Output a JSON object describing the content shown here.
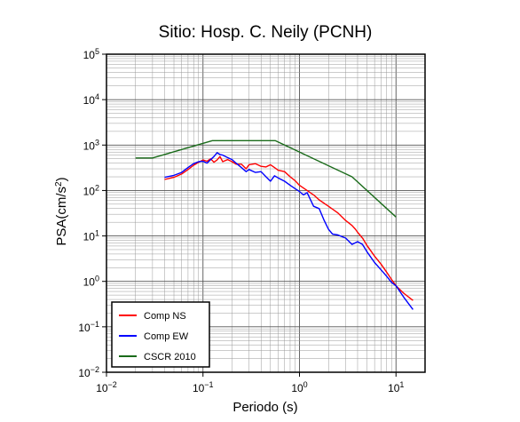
{
  "chart_data": {
    "type": "line",
    "title": "Sitio: Hosp. C. Neily (PCNH)",
    "xlabel": "Periodo (s)",
    "ylabel": "PSA(cm/s",
    "ylabel_sup": "2",
    "ylabel_close": ")",
    "x_scale": "log",
    "y_scale": "log",
    "xlim": [
      0.01,
      20
    ],
    "ylim": [
      0.01,
      100000
    ],
    "grid": true,
    "legend_position": "bottom-left",
    "x_tick_labels": [
      {
        "value": 0.01,
        "base": "10",
        "exp": "−2"
      },
      {
        "value": 0.1,
        "base": "10",
        "exp": "−1"
      },
      {
        "value": 1,
        "base": "10",
        "exp": "0"
      },
      {
        "value": 10,
        "base": "10",
        "exp": "1"
      }
    ],
    "y_tick_labels": [
      {
        "value": 0.01,
        "base": "10",
        "exp": "−2"
      },
      {
        "value": 0.1,
        "base": "10",
        "exp": "−1"
      },
      {
        "value": 1,
        "base": "10",
        "exp": "0"
      },
      {
        "value": 10,
        "base": "10",
        "exp": "1"
      },
      {
        "value": 100,
        "base": "10",
        "exp": "2"
      },
      {
        "value": 1000,
        "base": "10",
        "exp": "3"
      },
      {
        "value": 10000,
        "base": "10",
        "exp": "4"
      },
      {
        "value": 100000,
        "base": "10",
        "exp": "5"
      }
    ],
    "series": [
      {
        "name": "Comp NS",
        "color": "#ff0000",
        "x": [
          0.04,
          0.05,
          0.06,
          0.07,
          0.08,
          0.09,
          0.1,
          0.11,
          0.12,
          0.13,
          0.14,
          0.15,
          0.16,
          0.18,
          0.2,
          0.22,
          0.25,
          0.28,
          0.3,
          0.35,
          0.4,
          0.45,
          0.5,
          0.55,
          0.6,
          0.7,
          0.8,
          0.9,
          1.0,
          1.2,
          1.4,
          1.6,
          2.0,
          2.5,
          3.0,
          3.5,
          3.8,
          4.0,
          4.5,
          5.0,
          6.0,
          7.0,
          8.0,
          9.0,
          10.0,
          12.0,
          15.0
        ],
        "y": [
          175,
          195,
          230,
          290,
          360,
          420,
          470,
          440,
          500,
          420,
          470,
          560,
          430,
          480,
          430,
          380,
          380,
          300,
          370,
          390,
          340,
          330,
          370,
          320,
          280,
          260,
          200,
          165,
          130,
          100,
          80,
          62,
          45,
          32,
          22,
          17,
          14,
          12,
          9,
          6.2,
          3.6,
          2.4,
          1.6,
          1.1,
          0.8,
          0.55,
          0.38
        ]
      },
      {
        "name": "Comp EW",
        "color": "#0000ff",
        "x": [
          0.04,
          0.05,
          0.06,
          0.07,
          0.08,
          0.09,
          0.1,
          0.11,
          0.12,
          0.13,
          0.14,
          0.15,
          0.16,
          0.18,
          0.2,
          0.22,
          0.25,
          0.28,
          0.3,
          0.35,
          0.4,
          0.45,
          0.5,
          0.55,
          0.6,
          0.7,
          0.8,
          0.9,
          1.0,
          1.1,
          1.2,
          1.4,
          1.6,
          1.8,
          2.0,
          2.2,
          2.5,
          3.0,
          3.5,
          4.0,
          4.5,
          5.0,
          6.0,
          7.0,
          8.0,
          9.0,
          10.0,
          12.0,
          15.0
        ],
        "y": [
          195,
          215,
          250,
          320,
          390,
          430,
          440,
          400,
          480,
          560,
          680,
          620,
          600,
          530,
          480,
          400,
          320,
          260,
          290,
          250,
          260,
          200,
          160,
          210,
          190,
          160,
          130,
          110,
          95,
          80,
          90,
          45,
          40,
          22,
          14,
          11,
          10.5,
          9,
          6.5,
          7.5,
          6.5,
          4.5,
          2.6,
          1.8,
          1.3,
          0.95,
          0.8,
          0.45,
          0.24
        ]
      },
      {
        "name": "CSCR 2010",
        "color": "#1a6b1a",
        "x": [
          0.02,
          0.03,
          0.125,
          0.56,
          3.5,
          10.0
        ],
        "y": [
          520,
          520,
          1250,
          1250,
          200,
          26
        ]
      }
    ]
  }
}
